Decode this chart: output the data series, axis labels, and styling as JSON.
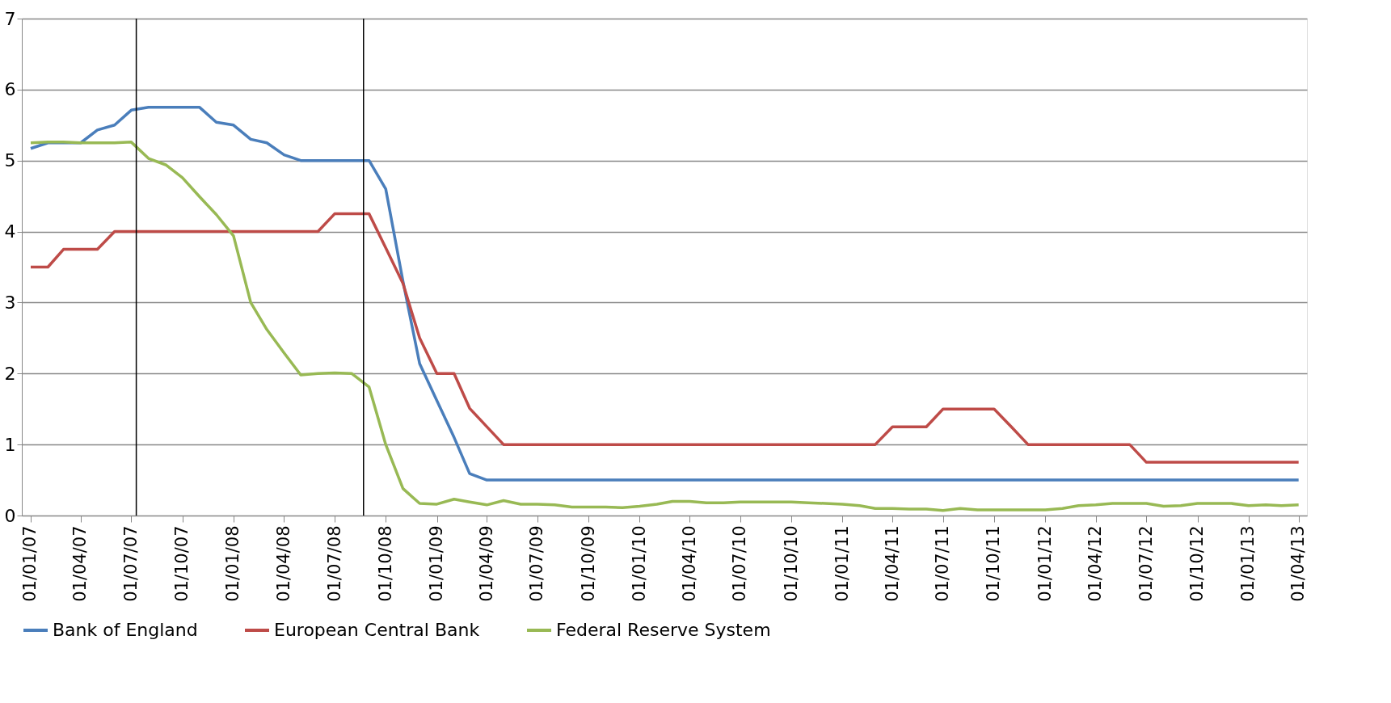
{
  "chart_data": {
    "type": "line",
    "x": [
      "2007-01",
      "2007-02",
      "2007-03",
      "2007-04",
      "2007-05",
      "2007-06",
      "2007-07",
      "2007-08",
      "2007-09",
      "2007-10",
      "2007-11",
      "2007-12",
      "2008-01",
      "2008-02",
      "2008-03",
      "2008-04",
      "2008-05",
      "2008-06",
      "2008-07",
      "2008-08",
      "2008-09",
      "2008-10",
      "2008-11",
      "2008-12",
      "2009-01",
      "2009-02",
      "2009-03",
      "2009-04",
      "2009-05",
      "2009-06",
      "2009-07",
      "2009-08",
      "2009-09",
      "2009-10",
      "2009-11",
      "2009-12",
      "2010-01",
      "2010-02",
      "2010-03",
      "2010-04",
      "2010-05",
      "2010-06",
      "2010-07",
      "2010-08",
      "2010-09",
      "2010-10",
      "2010-11",
      "2010-12",
      "2011-01",
      "2011-02",
      "2011-03",
      "2011-04",
      "2011-05",
      "2011-06",
      "2011-07",
      "2011-08",
      "2011-09",
      "2011-10",
      "2011-11",
      "2011-12",
      "2012-01",
      "2012-02",
      "2012-03",
      "2012-04",
      "2012-05",
      "2012-06",
      "2012-07",
      "2012-08",
      "2012-09",
      "2012-10",
      "2012-11",
      "2012-12",
      "2013-01",
      "2013-02",
      "2013-03",
      "2013-04"
    ],
    "series": [
      {
        "name": "Bank of England",
        "color": "#4a7ebb",
        "values": [
          5.17,
          5.25,
          5.25,
          5.25,
          5.43,
          5.5,
          5.71,
          5.75,
          5.75,
          5.75,
          5.75,
          5.54,
          5.5,
          5.3,
          5.25,
          5.08,
          5.0,
          5.0,
          5.0,
          5.0,
          5.0,
          4.6,
          3.3,
          2.14,
          1.62,
          1.1,
          0.59,
          0.5,
          0.5,
          0.5,
          0.5,
          0.5,
          0.5,
          0.5,
          0.5,
          0.5,
          0.5,
          0.5,
          0.5,
          0.5,
          0.5,
          0.5,
          0.5,
          0.5,
          0.5,
          0.5,
          0.5,
          0.5,
          0.5,
          0.5,
          0.5,
          0.5,
          0.5,
          0.5,
          0.5,
          0.5,
          0.5,
          0.5,
          0.5,
          0.5,
          0.5,
          0.5,
          0.5,
          0.5,
          0.5,
          0.5,
          0.5,
          0.5,
          0.5,
          0.5,
          0.5,
          0.5,
          0.5,
          0.5,
          0.5,
          0.5
        ]
      },
      {
        "name": "European Central Bank",
        "color": "#be4b48",
        "values": [
          3.5,
          3.5,
          3.75,
          3.75,
          3.75,
          4.0,
          4.0,
          4.0,
          4.0,
          4.0,
          4.0,
          4.0,
          4.0,
          4.0,
          4.0,
          4.0,
          4.0,
          4.0,
          4.25,
          4.25,
          4.25,
          3.77,
          3.27,
          2.5,
          2.0,
          2.0,
          1.51,
          1.25,
          1.0,
          1.0,
          1.0,
          1.0,
          1.0,
          1.0,
          1.0,
          1.0,
          1.0,
          1.0,
          1.0,
          1.0,
          1.0,
          1.0,
          1.0,
          1.0,
          1.0,
          1.0,
          1.0,
          1.0,
          1.0,
          1.0,
          1.0,
          1.25,
          1.25,
          1.25,
          1.5,
          1.5,
          1.5,
          1.5,
          1.25,
          1.0,
          1.0,
          1.0,
          1.0,
          1.0,
          1.0,
          1.0,
          0.75,
          0.75,
          0.75,
          0.75,
          0.75,
          0.75,
          0.75,
          0.75,
          0.75,
          0.75
        ]
      },
      {
        "name": "Federal Reserve System",
        "color": "#98b954",
        "values": [
          5.25,
          5.26,
          5.26,
          5.25,
          5.25,
          5.25,
          5.26,
          5.03,
          4.94,
          4.76,
          4.49,
          4.24,
          3.94,
          3.0,
          2.62,
          2.29,
          1.98,
          2.0,
          2.01,
          2.0,
          1.81,
          1.0,
          0.38,
          0.17,
          0.16,
          0.23,
          0.19,
          0.15,
          0.21,
          0.16,
          0.16,
          0.15,
          0.12,
          0.12,
          0.12,
          0.11,
          0.13,
          0.16,
          0.2,
          0.2,
          0.18,
          0.18,
          0.19,
          0.19,
          0.19,
          0.19,
          0.18,
          0.17,
          0.16,
          0.14,
          0.1,
          0.1,
          0.09,
          0.09,
          0.07,
          0.1,
          0.08,
          0.08,
          0.08,
          0.08,
          0.08,
          0.1,
          0.14,
          0.15,
          0.17,
          0.17,
          0.17,
          0.13,
          0.14,
          0.17,
          0.17,
          0.17,
          0.14,
          0.15,
          0.14,
          0.15
        ]
      }
    ],
    "xlim": [
      "2006-12-16",
      "2013-04-16"
    ],
    "xticks": [
      {
        "value": "2007-01",
        "label": "01/01/07"
      },
      {
        "value": "2007-04",
        "label": "01/04/07"
      },
      {
        "value": "2007-07",
        "label": "01/07/07"
      },
      {
        "value": "2007-10",
        "label": "01/10/07"
      },
      {
        "value": "2008-01",
        "label": "01/01/08"
      },
      {
        "value": "2008-04",
        "label": "01/04/08"
      },
      {
        "value": "2008-07",
        "label": "01/07/08"
      },
      {
        "value": "2008-10",
        "label": "01/10/08"
      },
      {
        "value": "2009-01",
        "label": "01/01/09"
      },
      {
        "value": "2009-04",
        "label": "01/04/09"
      },
      {
        "value": "2009-07",
        "label": "01/07/09"
      },
      {
        "value": "2009-10",
        "label": "01/10/09"
      },
      {
        "value": "2010-01",
        "label": "01/01/10"
      },
      {
        "value": "2010-04",
        "label": "01/04/10"
      },
      {
        "value": "2010-07",
        "label": "01/07/10"
      },
      {
        "value": "2010-10",
        "label": "01/10/10"
      },
      {
        "value": "2011-01",
        "label": "01/01/11"
      },
      {
        "value": "2011-04",
        "label": "01/04/11"
      },
      {
        "value": "2011-07",
        "label": "01/07/11"
      },
      {
        "value": "2011-10",
        "label": "01/10/11"
      },
      {
        "value": "2012-01",
        "label": "01/01/12"
      },
      {
        "value": "2012-04",
        "label": "01/04/12"
      },
      {
        "value": "2012-07",
        "label": "01/07/12"
      },
      {
        "value": "2012-10",
        "label": "01/10/12"
      },
      {
        "value": "2013-01",
        "label": "01/01/13"
      },
      {
        "value": "2013-04",
        "label": "01/04/13"
      }
    ],
    "ylim": [
      0,
      7
    ],
    "yticks": [
      0,
      1,
      2,
      3,
      4,
      5,
      6,
      7
    ],
    "ref_lines": [
      {
        "axis": "x",
        "value": "2007-07-10",
        "color": "#000000"
      },
      {
        "axis": "x",
        "value": "2008-08-22",
        "color": "#000000"
      }
    ],
    "grid": "y",
    "legend": "bottom",
    "marker": "none",
    "line_style": "solid"
  }
}
